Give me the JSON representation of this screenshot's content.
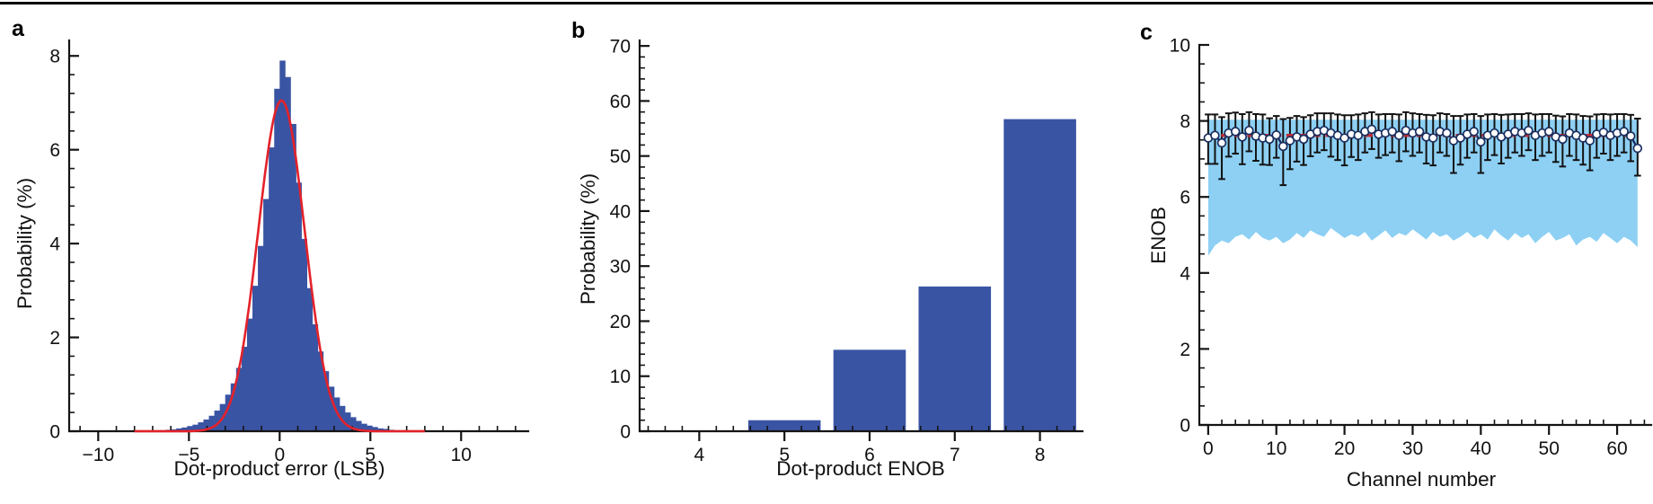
{
  "figure": {
    "panels": [
      {
        "letter": "a",
        "description": "histogram of dot-product error with Gaussian fit"
      },
      {
        "letter": "b",
        "description": "bar chart of dot-product ENOB probability"
      },
      {
        "letter": "c",
        "description": "per-channel ENOB with error bars and min-max band"
      }
    ]
  },
  "colors": {
    "axis": "#141414",
    "bar_blue": "#3A54A4",
    "fit_red": "#E4222A",
    "band_blue": "#8DD0F4",
    "line_navy": "#1B2E5F",
    "marker_fill": "#FFFFFF",
    "errorbar_black": "#121212",
    "ref_red": "#C52B35"
  },
  "chart_data": [
    {
      "panel": "a",
      "panel_label": "a",
      "type": "histogram",
      "xlabel": "Dot-product error (LSB)",
      "ylabel": "Probability (%)",
      "xlim": [
        -11.6,
        13.7
      ],
      "ylim": [
        0,
        8.33
      ],
      "xticks": [
        -10,
        -5,
        0,
        5,
        10
      ],
      "xtick_labels": [
        "−10",
        "−5",
        "0",
        "5",
        "10"
      ],
      "yticks": [
        0,
        2,
        4,
        6,
        8
      ],
      "ytick_labels": [
        "0",
        "2",
        "4",
        "6",
        "8"
      ],
      "x_minor_step": 1,
      "y_minor_step": 0.4,
      "bin_width": 0.3,
      "bin_centers": [
        -6.45,
        -6.15,
        -5.85,
        -5.55,
        -5.25,
        -4.95,
        -4.65,
        -4.35,
        -4.05,
        -3.75,
        -3.45,
        -3.15,
        -2.85,
        -2.55,
        -2.25,
        -1.95,
        -1.65,
        -1.35,
        -1.05,
        -0.75,
        -0.45,
        -0.15,
        0.15,
        0.45,
        0.75,
        1.05,
        1.35,
        1.65,
        1.95,
        2.25,
        2.55,
        2.85,
        3.15,
        3.45,
        3.75,
        4.05,
        4.35,
        4.65,
        4.95,
        5.25,
        5.55,
        5.85,
        6.15,
        6.45
      ],
      "bin_values": [
        0.02,
        0.03,
        0.04,
        0.06,
        0.08,
        0.11,
        0.14,
        0.19,
        0.25,
        0.33,
        0.44,
        0.58,
        0.78,
        1.02,
        1.35,
        1.8,
        2.4,
        3.1,
        3.95,
        4.95,
        6.05,
        7.3,
        7.9,
        7.55,
        6.55,
        5.3,
        4.1,
        3.05,
        2.28,
        1.7,
        1.28,
        0.95,
        0.72,
        0.54,
        0.4,
        0.3,
        0.22,
        0.16,
        0.12,
        0.09,
        0.06,
        0.05,
        0.03,
        0.02
      ],
      "fit": {
        "shape": "gaussian",
        "amplitude": 7.05,
        "mean": 0.1,
        "sigma": 1.28,
        "range": [
          -8,
          8
        ]
      }
    },
    {
      "panel": "b",
      "panel_label": "b",
      "type": "bar",
      "xlabel": "Dot-product ENOB",
      "ylabel": "Probability (%)",
      "xlim": [
        3.3,
        8.5
      ],
      "ylim": [
        0,
        71
      ],
      "xticks": [
        4,
        5,
        6,
        7,
        8
      ],
      "xtick_labels": [
        "4",
        "5",
        "6",
        "7",
        "8"
      ],
      "yticks": [
        0,
        10,
        20,
        30,
        40,
        50,
        60,
        70
      ],
      "ytick_labels": [
        "0",
        "10",
        "20",
        "30",
        "40",
        "50",
        "60",
        "70"
      ],
      "x_minor_step": 0.2,
      "y_minor_step": 2,
      "categories": [
        4,
        5,
        6,
        7,
        8
      ],
      "values": [
        0,
        2.0,
        14.8,
        26.3,
        56.7
      ],
      "bar_width": 0.85
    },
    {
      "panel": "c",
      "panel_label": "c",
      "type": "line-errorbar-band",
      "xlabel": "Channel number",
      "ylabel": "ENOB",
      "xlim": [
        -1.3,
        65
      ],
      "ylim": [
        0,
        10
      ],
      "xticks": [
        0,
        10,
        20,
        30,
        40,
        50,
        60
      ],
      "xtick_labels": [
        "0",
        "10",
        "20",
        "30",
        "40",
        "50",
        "60"
      ],
      "yticks": [
        0,
        2,
        4,
        6,
        8,
        10
      ],
      "ytick_labels": [
        "0",
        "2",
        "4",
        "6",
        "8",
        "10"
      ],
      "x_minor_step": 2,
      "y_minor_step": 0.5,
      "reference_value": 7.62,
      "band_top": 8.03,
      "channels": [
        0,
        1,
        2,
        3,
        4,
        5,
        6,
        7,
        8,
        9,
        10,
        11,
        12,
        13,
        14,
        15,
        16,
        17,
        18,
        19,
        20,
        21,
        22,
        23,
        24,
        25,
        26,
        27,
        28,
        29,
        30,
        31,
        32,
        33,
        34,
        35,
        36,
        37,
        38,
        39,
        40,
        41,
        42,
        43,
        44,
        45,
        46,
        47,
        48,
        49,
        50,
        51,
        52,
        53,
        54,
        55,
        56,
        57,
        58,
        59,
        60,
        61,
        62,
        63
      ],
      "enob": [
        7.55,
        7.62,
        7.42,
        7.68,
        7.72,
        7.58,
        7.75,
        7.6,
        7.55,
        7.52,
        7.63,
        7.33,
        7.48,
        7.58,
        7.52,
        7.65,
        7.72,
        7.75,
        7.68,
        7.62,
        7.55,
        7.65,
        7.62,
        7.72,
        7.78,
        7.65,
        7.68,
        7.72,
        7.62,
        7.75,
        7.68,
        7.72,
        7.58,
        7.55,
        7.72,
        7.68,
        7.48,
        7.55,
        7.65,
        7.72,
        7.45,
        7.62,
        7.68,
        7.58,
        7.65,
        7.72,
        7.68,
        7.75,
        7.62,
        7.68,
        7.72,
        7.58,
        7.52,
        7.68,
        7.62,
        7.55,
        7.48,
        7.65,
        7.7,
        7.62,
        7.68,
        7.72,
        7.6,
        7.28
      ],
      "err_plus": [
        0.62,
        0.55,
        0.68,
        0.52,
        0.5,
        0.6,
        0.48,
        0.58,
        0.62,
        0.55,
        0.5,
        0.72,
        0.6,
        0.55,
        0.58,
        0.5,
        0.48,
        0.45,
        0.52,
        0.55,
        0.6,
        0.5,
        0.55,
        0.48,
        0.45,
        0.52,
        0.5,
        0.46,
        0.55,
        0.48,
        0.52,
        0.46,
        0.58,
        0.6,
        0.48,
        0.5,
        0.65,
        0.58,
        0.52,
        0.46,
        0.68,
        0.55,
        0.5,
        0.58,
        0.52,
        0.46,
        0.5,
        0.45,
        0.55,
        0.5,
        0.46,
        0.56,
        0.6,
        0.5,
        0.55,
        0.58,
        0.64,
        0.52,
        0.48,
        0.55,
        0.5,
        0.46,
        0.56,
        0.78
      ],
      "err_minus": [
        0.68,
        0.75,
        0.95,
        0.62,
        0.58,
        0.72,
        0.55,
        0.65,
        0.7,
        0.68,
        0.6,
        1.02,
        0.75,
        0.65,
        0.68,
        0.58,
        0.55,
        0.52,
        0.62,
        0.65,
        0.72,
        0.6,
        0.65,
        0.55,
        0.52,
        0.62,
        0.58,
        0.55,
        0.68,
        0.55,
        0.6,
        0.55,
        0.7,
        0.72,
        0.55,
        0.6,
        0.85,
        0.7,
        0.62,
        0.55,
        0.82,
        0.65,
        0.58,
        0.7,
        0.62,
        0.55,
        0.6,
        0.52,
        0.65,
        0.6,
        0.55,
        0.66,
        0.72,
        0.6,
        0.65,
        0.7,
        0.78,
        0.62,
        0.56,
        0.65,
        0.6,
        0.55,
        0.66,
        0.72
      ],
      "band_bottom": [
        4.45,
        4.72,
        4.85,
        4.78,
        4.95,
        5.02,
        4.88,
        5.08,
        4.92,
        4.85,
        4.95,
        4.78,
        4.88,
        5.05,
        4.92,
        5.12,
        5.02,
        4.95,
        5.18,
        5.05,
        4.92,
        5.02,
        4.95,
        5.08,
        4.85,
        4.98,
        5.12,
        4.92,
        5.05,
        4.98,
        5.15,
        5.02,
        4.88,
        5.08,
        4.95,
        5.02,
        4.85,
        4.95,
        5.08,
        4.92,
        5.02,
        4.88,
        5.15,
        4.98,
        4.85,
        5.05,
        4.92,
        5.02,
        4.78,
        4.95,
        5.08,
        4.85,
        4.92,
        5.02,
        4.72,
        4.88,
        4.95,
        4.82,
        5.05,
        4.92,
        4.78,
        4.95,
        4.85,
        4.68
      ]
    }
  ]
}
